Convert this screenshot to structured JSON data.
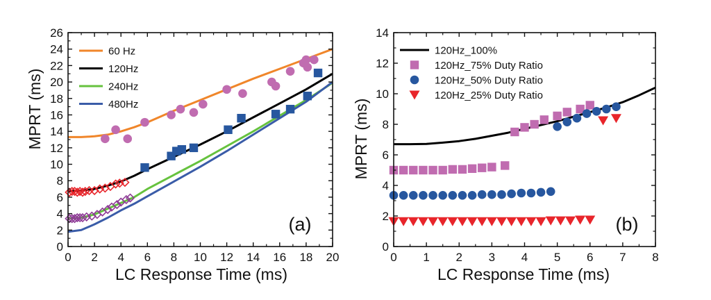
{
  "chart_data": [
    {
      "type": "scatter",
      "panel_label": "(a)",
      "xlabel": "LC Response Time (ms)",
      "ylabel": "MPRT (ms)",
      "xlim": [
        0,
        20
      ],
      "ylim": [
        0,
        26
      ],
      "xticks": [
        0,
        2,
        4,
        6,
        8,
        10,
        12,
        14,
        16,
        18,
        20
      ],
      "yticks": [
        0,
        2,
        4,
        6,
        8,
        10,
        12,
        14,
        16,
        18,
        20,
        22,
        24,
        26
      ],
      "legend": {
        "placement": "top-left"
      },
      "curves": [
        {
          "name": "60 Hz",
          "color": "#f0862a",
          "points": [
            [
              0,
              13.3
            ],
            [
              1,
              13.3
            ],
            [
              2,
              13.4
            ],
            [
              3,
              13.6
            ],
            [
              4,
              14.0
            ],
            [
              5,
              14.5
            ],
            [
              6,
              15.1
            ],
            [
              8,
              16.5
            ],
            [
              10,
              17.8
            ],
            [
              12,
              19.1
            ],
            [
              14,
              20.4
            ],
            [
              16,
              21.6
            ],
            [
              18,
              22.8
            ],
            [
              20,
              24.0
            ]
          ]
        },
        {
          "name": "120Hz",
          "color": "#000000",
          "points": [
            [
              0,
              6.7
            ],
            [
              1,
              6.8
            ],
            [
              2,
              7.0
            ],
            [
              3,
              7.4
            ],
            [
              4,
              7.9
            ],
            [
              5,
              8.6
            ],
            [
              6,
              9.4
            ],
            [
              8,
              10.9
            ],
            [
              10,
              12.4
            ],
            [
              12,
              14.0
            ],
            [
              14,
              15.7
            ],
            [
              16,
              17.4
            ],
            [
              18,
              19.1
            ],
            [
              20,
              21.0
            ]
          ]
        },
        {
          "name": "240Hz",
          "color": "#66c23e",
          "points": [
            [
              0,
              3.4
            ],
            [
              1,
              3.5
            ],
            [
              2,
              3.9
            ],
            [
              3,
              4.6
            ],
            [
              4,
              5.3
            ],
            [
              5,
              6.0
            ],
            [
              6,
              7.0
            ],
            [
              8,
              8.7
            ],
            [
              10,
              10.4
            ],
            [
              12,
              12.2
            ],
            [
              14,
              14.0
            ],
            [
              16,
              15.9
            ],
            [
              18,
              17.8
            ],
            [
              20,
              19.9
            ]
          ]
        },
        {
          "name": "480Hz",
          "color": "#3a5ca8",
          "points": [
            [
              0,
              1.8
            ],
            [
              1,
              2.0
            ],
            [
              2,
              2.7
            ],
            [
              3,
              3.5
            ],
            [
              4,
              4.4
            ],
            [
              5,
              5.2
            ],
            [
              6,
              6.1
            ],
            [
              8,
              7.9
            ],
            [
              10,
              9.7
            ],
            [
              12,
              11.6
            ],
            [
              14,
              13.6
            ],
            [
              16,
              15.6
            ],
            [
              18,
              17.6
            ],
            [
              20,
              20.0
            ]
          ]
        }
      ],
      "scatter": [
        {
          "marker": "circle",
          "color": "#c06cb0",
          "points": [
            [
              2.8,
              13.1
            ],
            [
              3.6,
              14.2
            ],
            [
              4.5,
              13.1
            ],
            [
              5.8,
              15.1
            ],
            [
              7.8,
              16.0
            ],
            [
              8.5,
              16.7
            ],
            [
              9.5,
              16.3
            ],
            [
              10.2,
              17.3
            ],
            [
              12.0,
              19.1
            ],
            [
              13.2,
              18.6
            ],
            [
              15.4,
              20.0
            ],
            [
              15.7,
              19.5
            ],
            [
              16.8,
              21.3
            ],
            [
              17.8,
              22.3
            ],
            [
              18.0,
              22.7
            ],
            [
              18.1,
              21.8
            ],
            [
              18.6,
              22.7
            ]
          ]
        },
        {
          "marker": "square",
          "color": "#27579f",
          "points": [
            [
              5.8,
              9.6
            ],
            [
              7.8,
              11.0
            ],
            [
              8.2,
              11.6
            ],
            [
              8.6,
              11.8
            ],
            [
              9.5,
              12.0
            ],
            [
              12.1,
              14.2
            ],
            [
              13.1,
              15.6
            ],
            [
              15.7,
              16.1
            ],
            [
              16.8,
              16.7
            ],
            [
              18.1,
              18.3
            ],
            [
              18.9,
              21.1
            ]
          ]
        },
        {
          "marker": "diamond-open",
          "color": "#e8252b",
          "points": [
            [
              0.1,
              6.6
            ],
            [
              0.3,
              6.7
            ],
            [
              0.5,
              6.7
            ],
            [
              0.7,
              6.6
            ],
            [
              0.9,
              6.7
            ],
            [
              1.1,
              6.6
            ],
            [
              1.3,
              6.7
            ],
            [
              1.6,
              6.8
            ],
            [
              2.0,
              6.8
            ],
            [
              2.4,
              7.0
            ],
            [
              2.8,
              7.1
            ],
            [
              3.2,
              7.3
            ],
            [
              3.6,
              7.6
            ],
            [
              3.9,
              7.7
            ],
            [
              4.3,
              7.8
            ]
          ]
        },
        {
          "marker": "diamond-open",
          "color": "#8e3a96",
          "points": [
            [
              0.1,
              3.4
            ],
            [
              0.3,
              3.4
            ],
            [
              0.5,
              3.4
            ],
            [
              0.7,
              3.5
            ],
            [
              0.9,
              3.5
            ],
            [
              1.1,
              3.5
            ],
            [
              1.4,
              3.6
            ],
            [
              1.8,
              3.7
            ],
            [
              2.2,
              3.9
            ],
            [
              2.6,
              4.2
            ],
            [
              3.0,
              4.5
            ],
            [
              3.3,
              4.8
            ],
            [
              3.7,
              5.1
            ],
            [
              4.0,
              5.4
            ],
            [
              4.4,
              5.7
            ],
            [
              4.7,
              5.9
            ]
          ]
        }
      ]
    },
    {
      "type": "scatter",
      "panel_label": "(b)",
      "xlabel": "LC Response Time (ms)",
      "ylabel": "MPRT (ms)",
      "xlim": [
        0,
        8
      ],
      "ylim": [
        0,
        14
      ],
      "xticks": [
        0,
        1,
        2,
        3,
        4,
        5,
        6,
        7,
        8
      ],
      "yticks": [
        0,
        2,
        4,
        6,
        8,
        10,
        12,
        14
      ],
      "legend": {
        "placement": "top-left"
      },
      "series": [
        {
          "name": "120Hz_100%",
          "marker": "line",
          "color": "#000000",
          "points": [
            [
              0,
              6.7
            ],
            [
              0.5,
              6.7
            ],
            [
              1,
              6.72
            ],
            [
              1.5,
              6.8
            ],
            [
              2,
              6.9
            ],
            [
              2.5,
              7.05
            ],
            [
              3,
              7.25
            ],
            [
              3.5,
              7.45
            ],
            [
              4,
              7.7
            ],
            [
              4.5,
              7.95
            ],
            [
              5,
              8.2
            ],
            [
              5.5,
              8.5
            ],
            [
              6,
              8.8
            ],
            [
              6.5,
              9.1
            ],
            [
              7,
              9.45
            ],
            [
              7.5,
              9.9
            ],
            [
              8,
              10.4
            ]
          ]
        },
        {
          "name": "120Hz_75% Duty Ratio",
          "marker": "square",
          "color": "#c06cb0",
          "points": [
            [
              0,
              5.0
            ],
            [
              0.3,
              5.0
            ],
            [
              0.6,
              5.0
            ],
            [
              0.9,
              5.0
            ],
            [
              1.2,
              5.0
            ],
            [
              1.5,
              5.0
            ],
            [
              1.8,
              5.05
            ],
            [
              2.1,
              5.05
            ],
            [
              2.4,
              5.1
            ],
            [
              2.7,
              5.15
            ],
            [
              3.0,
              5.2
            ],
            [
              3.4,
              5.3
            ],
            [
              3.7,
              7.5
            ],
            [
              4.0,
              7.8
            ],
            [
              4.3,
              8.0
            ],
            [
              4.6,
              8.3
            ],
            [
              5.0,
              8.55
            ],
            [
              5.3,
              8.8
            ],
            [
              5.7,
              9.0
            ],
            [
              6.0,
              9.25
            ]
          ]
        },
        {
          "name": "120Hz_50% Duty Ratio",
          "marker": "circle",
          "color": "#27579f",
          "points": [
            [
              0,
              3.35
            ],
            [
              0.3,
              3.35
            ],
            [
              0.6,
              3.35
            ],
            [
              0.9,
              3.35
            ],
            [
              1.2,
              3.35
            ],
            [
              1.5,
              3.35
            ],
            [
              1.8,
              3.35
            ],
            [
              2.1,
              3.35
            ],
            [
              2.4,
              3.35
            ],
            [
              2.7,
              3.4
            ],
            [
              3.0,
              3.4
            ],
            [
              3.3,
              3.4
            ],
            [
              3.6,
              3.45
            ],
            [
              3.9,
              3.5
            ],
            [
              4.2,
              3.5
            ],
            [
              4.5,
              3.55
            ],
            [
              4.8,
              3.6
            ],
            [
              5.0,
              7.85
            ],
            [
              5.3,
              8.15
            ],
            [
              5.6,
              8.4
            ],
            [
              5.9,
              8.7
            ],
            [
              6.2,
              8.85
            ],
            [
              6.5,
              9.0
            ],
            [
              6.8,
              9.15
            ]
          ]
        },
        {
          "name": "120Hz_25% Duty Ratio",
          "marker": "triangle-down",
          "color": "#e8252b",
          "points": [
            [
              0,
              1.65
            ],
            [
              0.3,
              1.65
            ],
            [
              0.6,
              1.65
            ],
            [
              0.9,
              1.65
            ],
            [
              1.2,
              1.65
            ],
            [
              1.5,
              1.65
            ],
            [
              1.8,
              1.65
            ],
            [
              2.1,
              1.65
            ],
            [
              2.4,
              1.65
            ],
            [
              2.7,
              1.65
            ],
            [
              3.0,
              1.65
            ],
            [
              3.3,
              1.65
            ],
            [
              3.6,
              1.65
            ],
            [
              3.9,
              1.65
            ],
            [
              4.2,
              1.65
            ],
            [
              4.5,
              1.65
            ],
            [
              4.8,
              1.7
            ],
            [
              5.1,
              1.7
            ],
            [
              5.4,
              1.7
            ],
            [
              5.7,
              1.75
            ],
            [
              6.0,
              1.75
            ],
            [
              6.4,
              8.25
            ],
            [
              6.8,
              8.4
            ]
          ]
        }
      ]
    }
  ]
}
